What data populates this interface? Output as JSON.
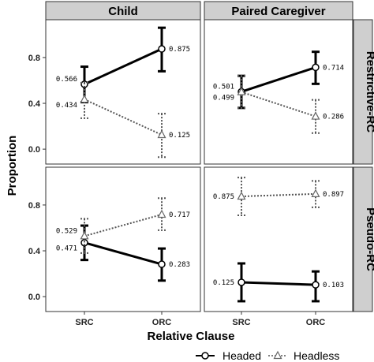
{
  "chart_data": {
    "type": "line",
    "xlabel": "Relative Clause",
    "ylabel": "Proportion",
    "categories": [
      "SRC",
      "ORC"
    ],
    "ylim": [
      -0.13,
      1.13
    ],
    "yticks": [
      "0.0",
      "0.4",
      "0.8"
    ],
    "ytick_values": [
      0.0,
      0.4,
      0.8
    ],
    "columns": [
      "Child",
      "Paired Caregiver"
    ],
    "rows": [
      "Restrictive-RC",
      "Pseudo-RC"
    ],
    "legend": {
      "position": "bottom",
      "items": [
        {
          "name": "Headed",
          "marker": "circle",
          "line": "solid"
        },
        {
          "name": "Headless",
          "marker": "triangle",
          "line": "dotted"
        }
      ]
    },
    "panels": [
      {
        "column": "Child",
        "row": "Restrictive-RC",
        "series": [
          {
            "name": "Headed",
            "values": [
              0.566,
              0.875
            ],
            "err_low": [
              0.41,
              0.68
            ],
            "err_high": [
              0.72,
              1.06
            ],
            "labels": [
              "0.566",
              "0.875"
            ]
          },
          {
            "name": "Headless",
            "values": [
              0.434,
              0.125
            ],
            "err_low": [
              0.27,
              -0.07
            ],
            "err_high": [
              0.58,
              0.31
            ],
            "labels": [
              "0.434",
              "0.125"
            ]
          }
        ]
      },
      {
        "column": "Paired Caregiver",
        "row": "Restrictive-RC",
        "series": [
          {
            "name": "Headed",
            "values": [
              0.501,
              0.714
            ],
            "err_low": [
              0.36,
              0.57
            ],
            "err_high": [
              0.64,
              0.85
            ],
            "labels": [
              "0.501",
              "0.714"
            ]
          },
          {
            "name": "Headless",
            "values": [
              0.499,
              0.286
            ],
            "err_low": [
              0.36,
              0.14
            ],
            "err_high": [
              0.64,
              0.43
            ],
            "labels": [
              "0.499",
              "0.286"
            ]
          }
        ]
      },
      {
        "column": "Child",
        "row": "Pseudo-RC",
        "series": [
          {
            "name": "Headed",
            "values": [
              0.471,
              0.283
            ],
            "err_low": [
              0.32,
              0.14
            ],
            "err_high": [
              0.62,
              0.42
            ],
            "labels": [
              "0.471",
              "0.283"
            ]
          },
          {
            "name": "Headless",
            "values": [
              0.529,
              0.717
            ],
            "err_low": [
              0.38,
              0.58
            ],
            "err_high": [
              0.68,
              0.86
            ],
            "labels": [
              "0.529",
              "0.717"
            ]
          }
        ]
      },
      {
        "column": "Paired Caregiver",
        "row": "Pseudo-RC",
        "series": [
          {
            "name": "Headed",
            "values": [
              0.125,
              0.103
            ],
            "err_low": [
              -0.04,
              -0.04
            ],
            "err_high": [
              0.29,
              0.22
            ],
            "labels": [
              "0.125",
              "0.103"
            ]
          },
          {
            "name": "Headless",
            "values": [
              0.875,
              0.897
            ],
            "err_low": [
              0.71,
              0.78
            ],
            "err_high": [
              1.04,
              1.01
            ],
            "labels": [
              "0.875",
              "0.897"
            ]
          }
        ]
      }
    ]
  }
}
